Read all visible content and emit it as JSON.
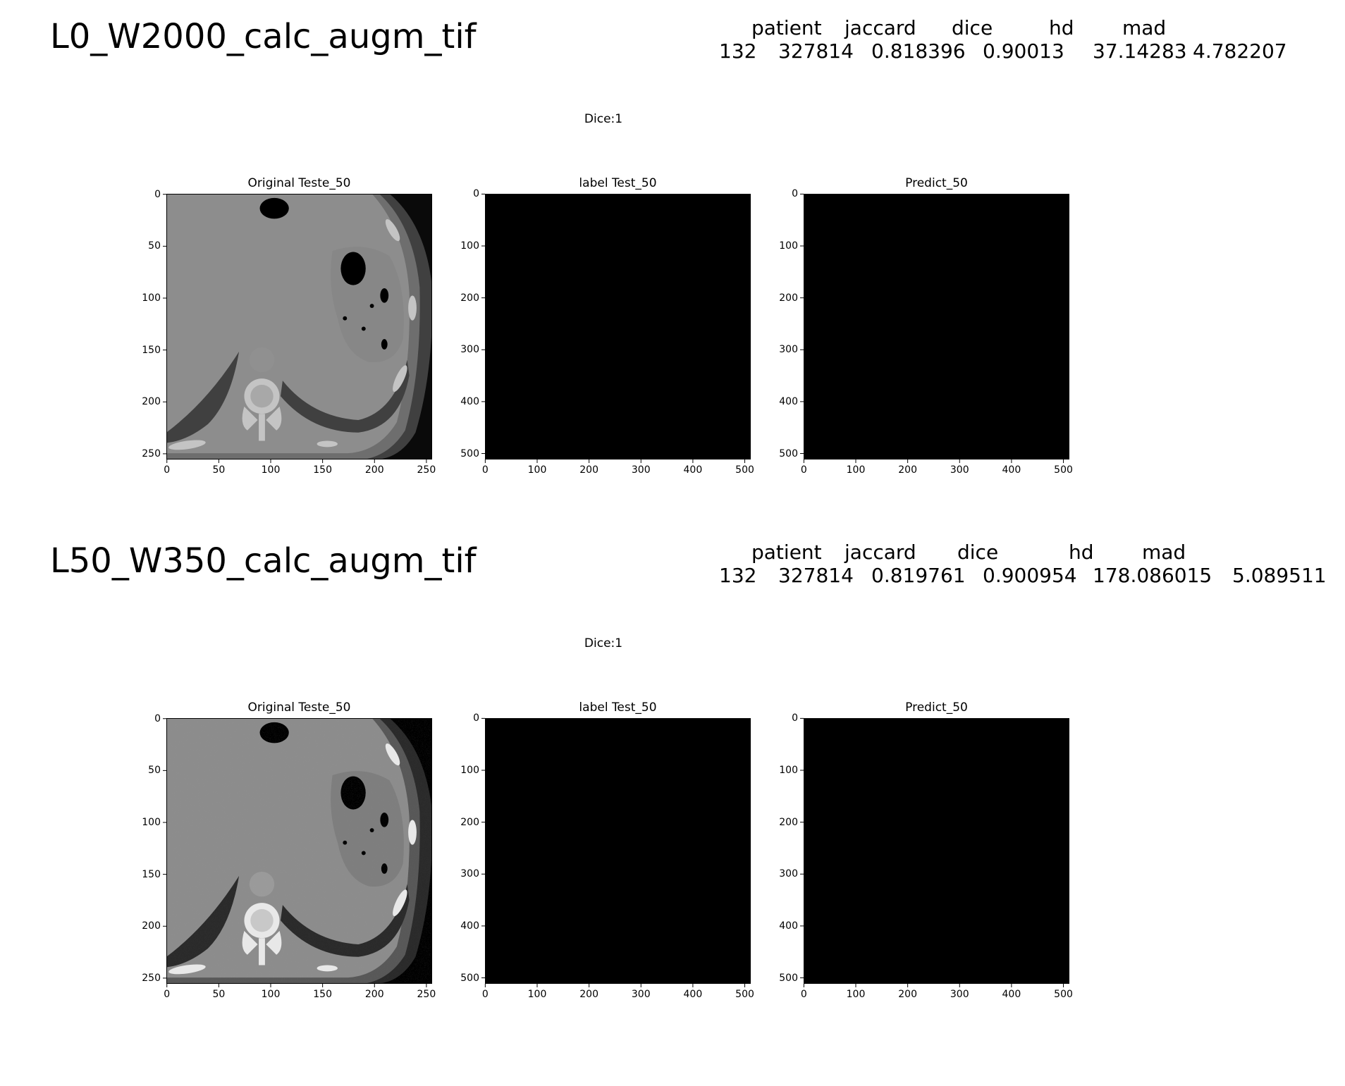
{
  "sections": [
    {
      "title": "L0_W2000_calc_augm_tif",
      "stats_header": [
        "patient",
        "jaccard",
        "dice",
        "hd",
        "mad"
      ],
      "stats_values": [
        "132",
        "327814",
        "0.818396",
        "0.90013",
        "37.14283",
        "4.782207"
      ],
      "suptitle": "Dice:1",
      "window": "wide",
      "panels": [
        {
          "title": "Original Teste_50",
          "xticks": [
            "0",
            "50",
            "100",
            "150",
            "200",
            "250"
          ],
          "yticks": [
            "0",
            "50",
            "100",
            "150",
            "200",
            "250"
          ],
          "kind": "ct"
        },
        {
          "title": "label Test_50",
          "xticks": [
            "0",
            "100",
            "200",
            "300",
            "400",
            "500"
          ],
          "yticks": [
            "0",
            "100",
            "200",
            "300",
            "400",
            "500"
          ],
          "kind": "black"
        },
        {
          "title": "Predict_50",
          "xticks": [
            "0",
            "100",
            "200",
            "300",
            "400",
            "500"
          ],
          "yticks": [
            "0",
            "100",
            "200",
            "300",
            "400",
            "500"
          ],
          "kind": "black"
        }
      ]
    },
    {
      "title": "L50_W350_calc_augm_tif",
      "stats_header": [
        "patient",
        "jaccard",
        "dice",
        "hd",
        "mad"
      ],
      "stats_values": [
        "132",
        "327814",
        "0.819761",
        "0.900954",
        "178.086015",
        "5.089511"
      ],
      "suptitle": "Dice:1",
      "window": "narrow",
      "panels": [
        {
          "title": "Original Teste_50",
          "xticks": [
            "0",
            "50",
            "100",
            "150",
            "200",
            "250"
          ],
          "yticks": [
            "0",
            "50",
            "100",
            "150",
            "200",
            "250"
          ],
          "kind": "ct"
        },
        {
          "title": "label Test_50",
          "xticks": [
            "0",
            "100",
            "200",
            "300",
            "400",
            "500"
          ],
          "yticks": [
            "0",
            "100",
            "200",
            "300",
            "400",
            "500"
          ],
          "kind": "black"
        },
        {
          "title": "Predict_50",
          "xticks": [
            "0",
            "100",
            "200",
            "300",
            "400",
            "500"
          ],
          "yticks": [
            "0",
            "100",
            "200",
            "300",
            "400",
            "500"
          ],
          "kind": "black"
        }
      ]
    }
  ]
}
